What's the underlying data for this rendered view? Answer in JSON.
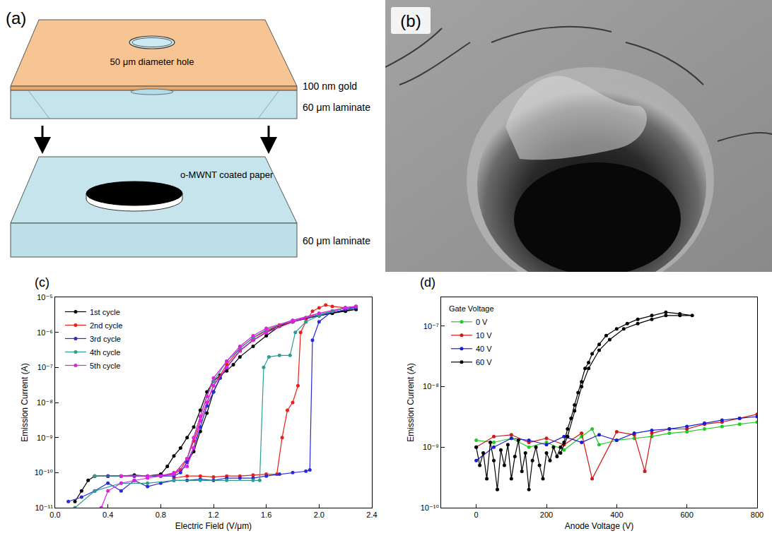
{
  "panels": {
    "a": {
      "panel": "(a)",
      "diagram": {
        "top_layer": {
          "coating": "100 nm gold",
          "hole": "50 μm diameter hole",
          "substrate": "60 μm laminate"
        },
        "bottom_layer": {
          "sample": "o-MWNT coated paper",
          "substrate": "60 μm laminate"
        }
      }
    },
    "b": {
      "panel": "(b)"
    }
  },
  "chart_data": [
    {
      "type": "line",
      "panel": "(c)",
      "x_label": "Electric Field (V/μm)",
      "y_label": "Emission Current (A)",
      "log": "y",
      "grid": false,
      "legend": "upper left",
      "marker": "circle",
      "xlim": [
        0,
        2.4
      ],
      "xticks": [
        {
          "value": 0,
          "label": "0.0"
        },
        0.4,
        0.8,
        1.2,
        1.6,
        {
          "value": 2,
          "label": "2.0"
        },
        2.4
      ],
      "ylim": [
        1e-11,
        1e-05
      ],
      "yticks": [
        {
          "value": 1e-11,
          "label": "10⁻¹¹"
        },
        {
          "value": 1e-10,
          "label": "10⁻¹⁰"
        },
        {
          "value": 1e-09,
          "label": "10⁻⁹"
        },
        {
          "value": 1e-08,
          "label": "10⁻⁸"
        },
        {
          "value": 1e-07,
          "label": "10⁻⁷"
        },
        {
          "value": 1e-06,
          "label": "10⁻⁶"
        },
        {
          "value": 1e-05,
          "label": "10⁻⁵"
        }
      ],
      "series": [
        {
          "name": "1st cycle",
          "color": "#000000",
          "x": [
            0.15,
            0.2,
            0.25,
            0.3,
            0.4,
            0.5,
            0.6,
            0.7,
            0.8,
            0.85,
            0.9,
            0.95,
            1.0,
            1.05,
            1.1,
            1.15,
            1.2,
            1.25,
            1.3,
            1.35,
            1.4,
            1.5,
            1.6,
            1.7,
            1.8,
            1.9,
            2.0,
            2.1,
            2.2,
            2.28,
            2.2,
            2.1,
            2.0,
            1.9,
            1.8,
            1.7,
            1.6,
            1.5,
            1.4,
            1.3,
            1.25,
            1.2,
            1.15,
            1.1,
            1.05,
            1.0
          ],
          "values": [
            1.5e-11,
            3e-11,
            6e-11,
            8e-11,
            8e-11,
            8e-11,
            8.5e-11,
            8e-11,
            9e-11,
            1.5e-10,
            3e-10,
            5e-10,
            1e-09,
            2e-09,
            6e-09,
            2e-08,
            4e-08,
            6e-08,
            8e-08,
            1.2e-07,
            2e-07,
            4e-07,
            8e-07,
            1.5e-06,
            2e-06,
            2.5e-06,
            3e-06,
            3.5e-06,
            4e-06,
            4.5e-06,
            4.2e-06,
            3.6e-06,
            3e-06,
            2.6e-06,
            2e-06,
            1.6e-06,
            1e-06,
            6e-07,
            3e-07,
            1e-07,
            5e-08,
            2e-08,
            5e-09,
            1.5e-09,
            4e-10,
            2e-10
          ]
        },
        {
          "name": "2nd cycle",
          "color": "#e8201c",
          "x": [
            0.9,
            1.0,
            1.1,
            1.2,
            1.3,
            1.4,
            1.5,
            1.6,
            1.68,
            1.72,
            1.76,
            1.8,
            1.84,
            1.86,
            1.9,
            1.95,
            2.0,
            2.05,
            2.1,
            2.2,
            2.28,
            2.2,
            2.1,
            2.0,
            1.9,
            1.8,
            1.7,
            1.6,
            1.5,
            1.4,
            1.3,
            1.2,
            1.15,
            1.1,
            1.05,
            1.0,
            0.95,
            0.9,
            0.8,
            0.7,
            0.6,
            0.5,
            0.4,
            0.3
          ],
          "values": [
            7e-11,
            8e-11,
            8e-11,
            7.5e-11,
            8e-11,
            8e-11,
            8.5e-11,
            9e-11,
            9e-11,
            1e-09,
            6e-09,
            1e-08,
            3e-08,
            1e-06,
            2e-06,
            4e-06,
            5e-06,
            6e-06,
            5.5e-06,
            5e-06,
            5.5e-06,
            5e-06,
            4e-06,
            3.2e-06,
            2.5e-06,
            2e-06,
            1.6e-06,
            1.1e-06,
            7e-07,
            3.5e-07,
            1.2e-07,
            3e-08,
            1e-08,
            3e-09,
            8e-10,
            2.5e-10,
            1.2e-10,
            9e-11,
            8e-11,
            8e-11,
            8e-11,
            8e-11,
            8e-11,
            8e-11
          ]
        },
        {
          "name": "3rd cycle",
          "color": "#2a2ad6",
          "x": [
            0.1,
            0.2,
            0.3,
            0.4,
            0.5,
            0.6,
            0.7,
            0.8,
            0.9,
            1.0,
            1.1,
            1.2,
            1.3,
            1.4,
            1.5,
            1.6,
            1.7,
            1.8,
            1.9,
            1.93,
            1.95,
            2.0,
            2.1,
            2.2,
            2.28,
            2.2,
            2.0,
            1.8,
            1.6,
            1.5,
            1.4,
            1.3,
            1.25,
            1.2,
            1.15,
            1.1,
            1.05,
            1.0,
            0.95,
            0.9,
            0.8,
            0.6,
            0.4
          ],
          "values": [
            1.5e-11,
            2e-11,
            3e-11,
            5e-11,
            3e-11,
            6e-11,
            4e-11,
            5e-11,
            6e-11,
            6e-11,
            6.5e-11,
            6e-11,
            7e-11,
            7e-11,
            7e-11,
            8e-11,
            9e-11,
            1e-10,
            1.1e-10,
            1.2e-10,
            6e-07,
            2e-06,
            4e-06,
            5e-06,
            5e-06,
            4.5e-06,
            3e-06,
            2e-06,
            1e-06,
            6e-07,
            3e-07,
            1e-07,
            5e-08,
            2e-08,
            8e-09,
            2e-09,
            5e-10,
            2e-10,
            1e-10,
            8e-11,
            8e-11,
            8e-11,
            8e-11
          ]
        },
        {
          "name": "4th cycle",
          "color": "#2f9c94",
          "x": [
            0.15,
            0.3,
            0.5,
            0.7,
            0.9,
            1.1,
            1.3,
            1.5,
            1.55,
            1.58,
            1.62,
            1.7,
            1.78,
            1.82,
            1.9,
            2.0,
            2.1,
            2.2,
            2.28,
            2.2,
            2.0,
            1.8,
            1.6,
            1.5,
            1.4,
            1.3,
            1.2,
            1.15,
            1.1,
            1.05,
            1.0,
            0.9,
            0.7,
            0.5,
            0.3
          ],
          "values": [
            1e-11,
            3e-11,
            5e-11,
            5e-11,
            6e-11,
            6e-11,
            6e-11,
            6e-11,
            6e-11,
            1e-07,
            2e-07,
            2.2e-07,
            2.2e-07,
            1e-06,
            2e-06,
            3e-06,
            4e-06,
            5e-06,
            5.5e-06,
            5e-06,
            3.2e-06,
            2.2e-06,
            1.2e-06,
            7e-07,
            3.5e-07,
            1.5e-07,
            4e-08,
            1.5e-08,
            4e-09,
            1e-09,
            2.5e-10,
            9e-11,
            8e-11,
            8e-11,
            8e-11
          ]
        },
        {
          "name": "5th cycle",
          "color": "#e020e0",
          "x": [
            0.35,
            0.4,
            0.5,
            0.6,
            0.7,
            0.8,
            0.9,
            1.0,
            1.05,
            1.1,
            1.15,
            1.2,
            1.3,
            1.4,
            1.5,
            1.6,
            1.8,
            2.0,
            2.2,
            2.28,
            2.2,
            2.0,
            1.8,
            1.6,
            1.5,
            1.4,
            1.3,
            1.2,
            1.15,
            1.1,
            1.05,
            1.0,
            0.9,
            0.7,
            0.5
          ],
          "values": [
            1e-11,
            3e-11,
            5e-11,
            6e-11,
            7e-11,
            8e-11,
            1e-10,
            1.5e-10,
            5e-10,
            3e-09,
            1e-08,
            3e-08,
            1e-07,
            3e-07,
            6e-07,
            1e-06,
            2e-06,
            3.5e-06,
            5e-06,
            5.5e-06,
            5e-06,
            3.5e-06,
            2.2e-06,
            1.3e-06,
            8e-07,
            4e-07,
            1.5e-07,
            5e-08,
            1.5e-08,
            4e-09,
            1e-09,
            2.5e-10,
            9e-11,
            8e-11,
            8e-11
          ]
        }
      ]
    },
    {
      "type": "line",
      "panel": "(d)",
      "x_label": "Anode Voltage (V)",
      "y_label": "Emission Current (A)",
      "log": "y",
      "grid": false,
      "legend": "upper left",
      "legend_title": "Gate Voltage",
      "marker": "circle",
      "xlim": [
        -100,
        800
      ],
      "xticks": [
        0,
        200,
        400,
        600,
        800
      ],
      "ylim": [
        1e-10,
        3e-07
      ],
      "yticks": [
        {
          "value": 1e-10,
          "label": "10⁻¹⁰"
        },
        {
          "value": 1e-09,
          "label": "10⁻⁹"
        },
        {
          "value": 1e-08,
          "label": "10⁻⁸"
        },
        {
          "value": 1e-07,
          "label": "10⁻⁷"
        }
      ],
      "series": [
        {
          "name": "0 V",
          "color": "#22cc22",
          "x": [
            0,
            50,
            100,
            150,
            200,
            250,
            300,
            330,
            350,
            400,
            450,
            500,
            550,
            600,
            650,
            700,
            750,
            800
          ],
          "values": [
            1.3e-09,
            1.2e-09,
            1.4e-09,
            1e-09,
            1.2e-09,
            9e-10,
            1.5e-09,
            2e-09,
            1.1e-09,
            1.3e-09,
            1.4e-09,
            1.5e-09,
            1.7e-09,
            1.8e-09,
            2e-09,
            2.2e-09,
            2.4e-09,
            2.6e-09
          ]
        },
        {
          "name": "10 V",
          "color": "#d01818",
          "x": [
            0,
            50,
            100,
            150,
            200,
            250,
            300,
            330,
            400,
            450,
            480,
            500,
            550,
            600,
            650,
            700,
            750,
            800
          ],
          "values": [
            1e-09,
            1.5e-09,
            1.6e-09,
            1.2e-09,
            1.4e-09,
            1.1e-09,
            1.7e-09,
            3e-10,
            1.8e-09,
            1.6e-09,
            4e-10,
            1.7e-09,
            2e-09,
            2e-09,
            2.4e-09,
            2.6e-09,
            3e-09,
            3.5e-09
          ]
        },
        {
          "name": "40 V",
          "color": "#1c1cd0",
          "x": [
            0,
            50,
            100,
            150,
            200,
            250,
            300,
            350,
            400,
            450,
            500,
            550,
            600,
            650,
            700,
            750,
            800
          ],
          "values": [
            6e-10,
            1e-09,
            1.4e-09,
            1.3e-09,
            1.1e-09,
            1.5e-09,
            1.2e-09,
            1.6e-09,
            1.3e-09,
            1.7e-09,
            1.9e-09,
            2e-09,
            2.2e-09,
            2.5e-09,
            2.8e-09,
            3e-09,
            3.2e-09
          ]
        },
        {
          "name": "60 V",
          "color": "#000000",
          "x": [
            0,
            10,
            20,
            30,
            40,
            50,
            60,
            70,
            80,
            90,
            100,
            110,
            120,
            130,
            140,
            150,
            160,
            170,
            180,
            190,
            200,
            210,
            220,
            230,
            240,
            250,
            260,
            270,
            280,
            290,
            300,
            310,
            320,
            330,
            350,
            370,
            400,
            430,
            460,
            500,
            540,
            580,
            615,
            580,
            540,
            500,
            460,
            420,
            380,
            350,
            320,
            300,
            280,
            260,
            240
          ],
          "values": [
            1e-09,
            5e-10,
            8e-10,
            3e-10,
            1.2e-09,
            6e-10,
            2e-10,
            9e-10,
            5e-10,
            1.1e-09,
            3e-10,
            7e-10,
            1.3e-09,
            4e-10,
            8e-10,
            2e-10,
            6e-10,
            1e-09,
            5e-10,
            3e-10,
            8e-10,
            6e-10,
            1e-09,
            7e-10,
            1e-09,
            1.2e-09,
            2e-09,
            3e-09,
            5e-09,
            8e-09,
            1.2e-08,
            2e-08,
            2.5e-08,
            3.5e-08,
            5e-08,
            7e-08,
            9e-08,
            1.1e-07,
            1.3e-07,
            1.5e-07,
            1.7e-07,
            1.6e-07,
            1.5e-07,
            1.5e-07,
            1.5e-07,
            1.3e-07,
            1.1e-07,
            9e-08,
            6e-08,
            4e-08,
            2e-08,
            1e-08,
            4e-09,
            1.5e-09,
            8e-10
          ]
        }
      ]
    }
  ]
}
